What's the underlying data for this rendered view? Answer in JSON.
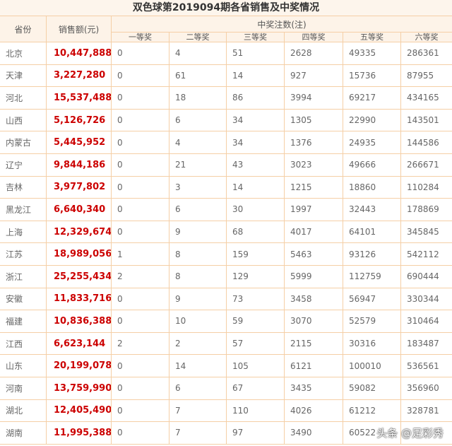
{
  "title": "双色球第2019094期各省销售及中奖情况",
  "headers": {
    "province": "省份",
    "sales": "销售额(元)",
    "wins": "中奖注数(注)",
    "prizes": [
      "一等奖",
      "二等奖",
      "三等奖",
      "四等奖",
      "五等奖",
      "六等奖"
    ]
  },
  "rows": [
    [
      "北京",
      "10,447,888",
      "0",
      "4",
      "51",
      "2628",
      "49335",
      "286361"
    ],
    [
      "天津",
      "3,227,280",
      "0",
      "61",
      "14",
      "927",
      "15736",
      "87955"
    ],
    [
      "河北",
      "15,537,488",
      "0",
      "18",
      "86",
      "3994",
      "69217",
      "434165"
    ],
    [
      "山西",
      "5,126,726",
      "0",
      "6",
      "34",
      "1305",
      "22990",
      "143501"
    ],
    [
      "内蒙古",
      "5,445,952",
      "0",
      "4",
      "34",
      "1376",
      "24935",
      "144586"
    ],
    [
      "辽宁",
      "9,844,186",
      "0",
      "21",
      "43",
      "3023",
      "49666",
      "266671"
    ],
    [
      "吉林",
      "3,977,802",
      "0",
      "3",
      "14",
      "1215",
      "18860",
      "110284"
    ],
    [
      "黑龙江",
      "6,640,340",
      "0",
      "6",
      "30",
      "1997",
      "32443",
      "178869"
    ],
    [
      "上海",
      "12,329,674",
      "0",
      "9",
      "68",
      "4017",
      "64101",
      "345845"
    ],
    [
      "江苏",
      "18,989,056",
      "1",
      "8",
      "159",
      "5463",
      "93126",
      "542112"
    ],
    [
      "浙江",
      "25,255,434",
      "2",
      "8",
      "129",
      "5999",
      "112759",
      "690444"
    ],
    [
      "安徽",
      "11,833,716",
      "0",
      "9",
      "73",
      "3458",
      "56947",
      "330344"
    ],
    [
      "福建",
      "10,836,388",
      "0",
      "10",
      "59",
      "3070",
      "52579",
      "310464"
    ],
    [
      "江西",
      "6,623,144",
      "2",
      "2",
      "57",
      "2115",
      "30316",
      "183487"
    ],
    [
      "山东",
      "20,199,078",
      "0",
      "14",
      "105",
      "6121",
      "100010",
      "536561"
    ],
    [
      "河南",
      "13,759,990",
      "0",
      "6",
      "67",
      "3435",
      "59082",
      "356960"
    ],
    [
      "湖北",
      "12,405,490",
      "0",
      "7",
      "110",
      "4026",
      "61212",
      "328781"
    ],
    [
      "湖南",
      "11,995,388",
      "0",
      "7",
      "97",
      "3490",
      "60522",
      ""
    ]
  ],
  "watermark": "头条 @足彩秀"
}
